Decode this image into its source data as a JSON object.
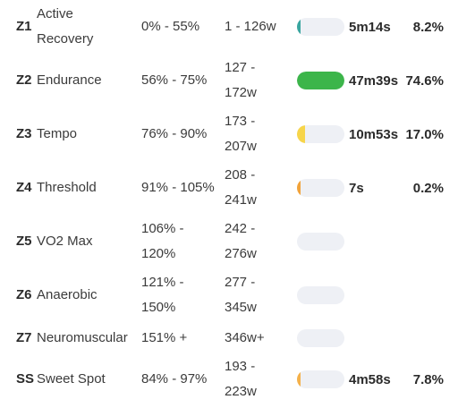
{
  "zones": [
    {
      "id": "Z1",
      "name": "Active Recovery",
      "pct": "0% - 55%",
      "watts": "1 - 126w",
      "time": "5m14s",
      "share": "8.2%",
      "fill": 0.082,
      "color": "#3aa6a0"
    },
    {
      "id": "Z2",
      "name": "Endurance",
      "pct": "56% - 75%",
      "watts": "127 - 172w",
      "time": "47m39s",
      "share": "74.6%",
      "fill": 0.746,
      "color": "#3cb54a"
    },
    {
      "id": "Z3",
      "name": "Tempo",
      "pct": "76% - 90%",
      "watts": "173 - 207w",
      "time": "10m53s",
      "share": "17.0%",
      "fill": 0.17,
      "color": "#f7d54a"
    },
    {
      "id": "Z4",
      "name": "Threshold",
      "pct": "91% - 105%",
      "watts": "208 - 241w",
      "time": "7s",
      "share": "0.2%",
      "fill": 0.002,
      "color": "#f2a33a"
    },
    {
      "id": "Z5",
      "name": "VO2 Max",
      "pct": "106% - 120%",
      "watts": "242 - 276w",
      "time": "",
      "share": "",
      "fill": 0,
      "color": "#e5523b"
    },
    {
      "id": "Z6",
      "name": "Anaerobic",
      "pct": "121% - 150%",
      "watts": "277 - 345w",
      "time": "",
      "share": "",
      "fill": 0,
      "color": "#c0392b"
    },
    {
      "id": "Z7",
      "name": "Neuromuscular",
      "pct": "151% +",
      "watts": "346w+",
      "time": "",
      "share": "",
      "fill": 0,
      "color": "#8e44ad"
    },
    {
      "id": "SS",
      "name": "Sweet Spot",
      "pct": "84% - 97%",
      "watts": "193 - 223w",
      "time": "4m58s",
      "share": "7.8%",
      "fill": 0.078,
      "color": "#f5b14a"
    }
  ]
}
